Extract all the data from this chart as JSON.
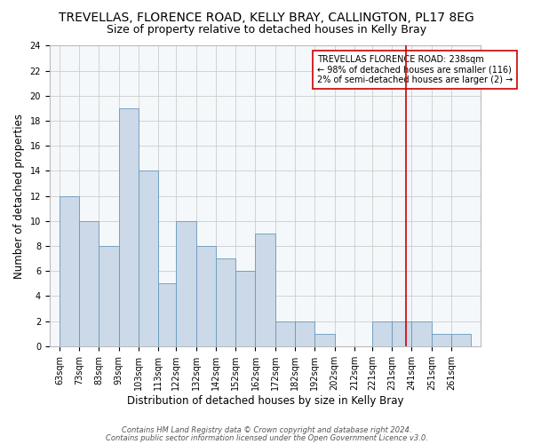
{
  "title": "TREVELLAS, FLORENCE ROAD, KELLY BRAY, CALLINGTON, PL17 8EG",
  "subtitle": "Size of property relative to detached houses in Kelly Bray",
  "xlabel": "Distribution of detached houses by size in Kelly Bray",
  "ylabel": "Number of detached properties",
  "bin_labels": [
    "63sqm",
    "73sqm",
    "83sqm",
    "93sqm",
    "103sqm",
    "113sqm",
    "122sqm",
    "132sqm",
    "142sqm",
    "152sqm",
    "162sqm",
    "172sqm",
    "182sqm",
    "192sqm",
    "202sqm",
    "212sqm",
    "221sqm",
    "231sqm",
    "241sqm",
    "251sqm",
    "261sqm"
  ],
  "bin_left_edges": [
    63,
    73,
    83,
    93,
    103,
    113,
    122,
    132,
    142,
    152,
    162,
    172,
    182,
    192,
    202,
    212,
    221,
    231,
    241,
    251,
    261
  ],
  "bin_widths": [
    10,
    10,
    10,
    10,
    10,
    9,
    10,
    10,
    10,
    10,
    10,
    10,
    10,
    10,
    10,
    9,
    10,
    10,
    10,
    10,
    10
  ],
  "heights": [
    12,
    10,
    8,
    19,
    14,
    5,
    10,
    8,
    7,
    6,
    9,
    2,
    2,
    1,
    0,
    0,
    2,
    2,
    2,
    1,
    1
  ],
  "bar_fill_color": "#ccd9e8",
  "bar_edge_color": "#6699bb",
  "grid_color": "#cccccc",
  "background_color": "#ffffff",
  "plot_bg_color": "#f5f8fb",
  "marker_x": 238,
  "marker_color": "#cc0000",
  "annotation_title": "TREVELLAS FLORENCE ROAD: 238sqm",
  "annotation_line1": "← 98% of detached houses are smaller (116)",
  "annotation_line2": "2% of semi-detached houses are larger (2) →",
  "ylim": [
    0,
    24
  ],
  "yticks": [
    0,
    2,
    4,
    6,
    8,
    10,
    12,
    14,
    16,
    18,
    20,
    22,
    24
  ],
  "xlim_left": 58,
  "xlim_right": 276,
  "footer1": "Contains HM Land Registry data © Crown copyright and database right 2024.",
  "footer2": "Contains public sector information licensed under the Open Government Licence v3.0.",
  "title_fontsize": 10,
  "subtitle_fontsize": 9,
  "axis_label_fontsize": 8.5,
  "tick_fontsize": 7,
  "annot_fontsize": 7,
  "footer_fontsize": 6
}
